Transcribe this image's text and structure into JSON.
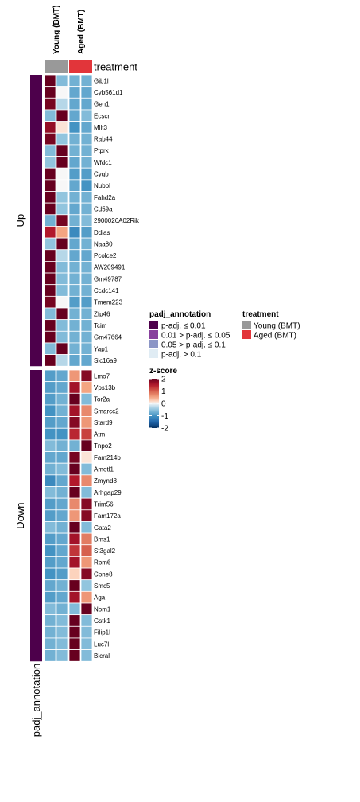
{
  "chart_data": {
    "type": "heatmap",
    "columns": [
      "Young (BMT)",
      "Young (BMT)",
      "Aged (BMT)",
      "Aged (BMT)"
    ],
    "column_groups": [
      {
        "label": "Young (BMT)",
        "color": "#999999"
      },
      {
        "label": "Aged (BMT)",
        "color": "#E2353A"
      }
    ],
    "column_annotation_title": "treatment",
    "row_annotation_title": "padj_annotation",
    "row_groups": [
      {
        "label": "Up",
        "genes": [
          "Gib1l",
          "Cyb561d1",
          "Gen1",
          "Ecscr",
          "Mllt3",
          "Rab44",
          "Ptprk",
          "Wfdc1",
          "Cygb",
          "Nubpl",
          "Fahd2a",
          "Cd59a",
          "2900026A02Rik",
          "Ddias",
          "Naa80",
          "Pcolce2",
          "AW209491",
          "Gm49787",
          "Ccdc141",
          "Tmem223",
          "Zfp46",
          "Tcim",
          "Gm47664",
          "Yap1",
          "Slc16a9"
        ],
        "values": [
          [
            2.0,
            -0.6,
            -0.7,
            -0.7
          ],
          [
            2.0,
            0.0,
            -0.8,
            -0.8
          ],
          [
            1.9,
            -0.3,
            -0.8,
            -0.8
          ],
          [
            -0.6,
            2.0,
            -0.8,
            -0.6
          ],
          [
            1.7,
            0.1,
            -1.0,
            -0.8
          ],
          [
            1.9,
            -0.5,
            -0.7,
            -0.7
          ],
          [
            -0.6,
            2.0,
            -0.7,
            -0.7
          ],
          [
            -0.5,
            2.0,
            -0.8,
            -0.7
          ],
          [
            2.0,
            0.0,
            -0.9,
            -0.9
          ],
          [
            2.0,
            0.0,
            -0.8,
            -1.0
          ],
          [
            2.0,
            -0.5,
            -0.7,
            -0.7
          ],
          [
            2.0,
            -0.5,
            -0.8,
            -0.7
          ],
          [
            -0.7,
            1.9,
            -0.7,
            -0.6
          ],
          [
            1.5,
            0.5,
            -1.1,
            -0.9
          ],
          [
            -0.5,
            2.0,
            -0.8,
            -0.7
          ],
          [
            2.0,
            -0.3,
            -0.8,
            -0.8
          ],
          [
            2.0,
            -0.6,
            -0.7,
            -0.7
          ],
          [
            2.0,
            -0.6,
            -0.7,
            -0.7
          ],
          [
            2.0,
            -0.6,
            -0.7,
            -0.7
          ],
          [
            1.9,
            0.0,
            -0.9,
            -0.9
          ],
          [
            -0.6,
            2.0,
            -0.7,
            -0.7
          ],
          [
            2.0,
            -0.6,
            -0.7,
            -0.7
          ],
          [
            2.0,
            -0.6,
            -0.7,
            -0.7
          ],
          [
            -0.6,
            2.0,
            -0.7,
            -0.7
          ],
          [
            2.0,
            -0.3,
            -0.8,
            -0.8
          ]
        ]
      },
      {
        "label": "Down",
        "genes": [
          "Lmo7",
          "Vps13b",
          "Tor2a",
          "Smarcc2",
          "Stard9",
          "Atm",
          "Tnpo2",
          "Fam214b",
          "Amotl1",
          "Zmynd8",
          "Arhgap29",
          "Trim56",
          "Fam172a",
          "Gata2",
          "Bms1",
          "St3gal2",
          "Rbm6",
          "Cpne8",
          "Smc5",
          "Aga",
          "Nom1",
          "Gstk1",
          "Filip1l",
          "Luc7l",
          "Bicral"
        ],
        "values": [
          [
            -0.9,
            -0.8,
            0.6,
            1.8
          ],
          [
            -0.9,
            -0.8,
            1.6,
            0.5
          ],
          [
            -0.9,
            -0.7,
            2.0,
            -0.6
          ],
          [
            -1.0,
            -0.7,
            1.6,
            0.7
          ],
          [
            -0.9,
            -0.8,
            1.8,
            0.6
          ],
          [
            -1.0,
            -1.0,
            1.4,
            1.2
          ],
          [
            -0.6,
            -0.7,
            -0.7,
            2.0
          ],
          [
            -0.8,
            -0.8,
            1.9,
            0.1
          ],
          [
            -0.7,
            -0.6,
            2.0,
            -0.6
          ],
          [
            -1.1,
            -0.8,
            1.5,
            0.7
          ],
          [
            -0.6,
            -0.7,
            2.0,
            -0.6
          ],
          [
            -0.9,
            -0.8,
            0.7,
            1.8
          ],
          [
            -0.9,
            -0.8,
            0.6,
            1.8
          ],
          [
            -0.6,
            -0.7,
            2.0,
            -0.6
          ],
          [
            -0.9,
            -0.8,
            1.6,
            0.8
          ],
          [
            -1.0,
            -0.8,
            1.3,
            1.0
          ],
          [
            -0.9,
            -0.8,
            1.6,
            0.6
          ],
          [
            -1.0,
            -0.9,
            0.2,
            1.8
          ],
          [
            -0.8,
            -0.7,
            2.0,
            -0.5
          ],
          [
            -0.9,
            -0.8,
            1.6,
            0.6
          ],
          [
            -0.6,
            -0.7,
            -0.6,
            2.0
          ],
          [
            -0.7,
            -0.6,
            2.0,
            -0.6
          ],
          [
            -0.7,
            -0.6,
            2.0,
            -0.6
          ],
          [
            -0.7,
            -0.6,
            2.0,
            -0.6
          ],
          [
            -0.7,
            -0.6,
            2.0,
            -0.6
          ]
        ]
      }
    ],
    "padj_legend": {
      "title": "padj_annotation",
      "entries": [
        {
          "label": "p-adj. ≤ 0.01",
          "color": "#4D004B"
        },
        {
          "label": "0.01 > p-adj. ≤ 0.05",
          "color": "#88419D"
        },
        {
          "label": "0.05 > p-adj. ≤ 0.1",
          "color": "#8C96C6"
        },
        {
          "label": "p-adj. > 0.1",
          "color": "#E0ECF4"
        }
      ]
    },
    "treatment_legend": {
      "title": "treatment",
      "entries": [
        {
          "label": "Young (BMT)",
          "color": "#999999"
        },
        {
          "label": "Aged (BMT)",
          "color": "#E2353A"
        }
      ]
    },
    "zscore_legend": {
      "title": "z-score",
      "ticks": [
        2,
        1,
        0,
        -1,
        -2
      ],
      "range": [
        -2,
        2
      ]
    },
    "row_padj": "p-adj. ≤ 0.01"
  }
}
